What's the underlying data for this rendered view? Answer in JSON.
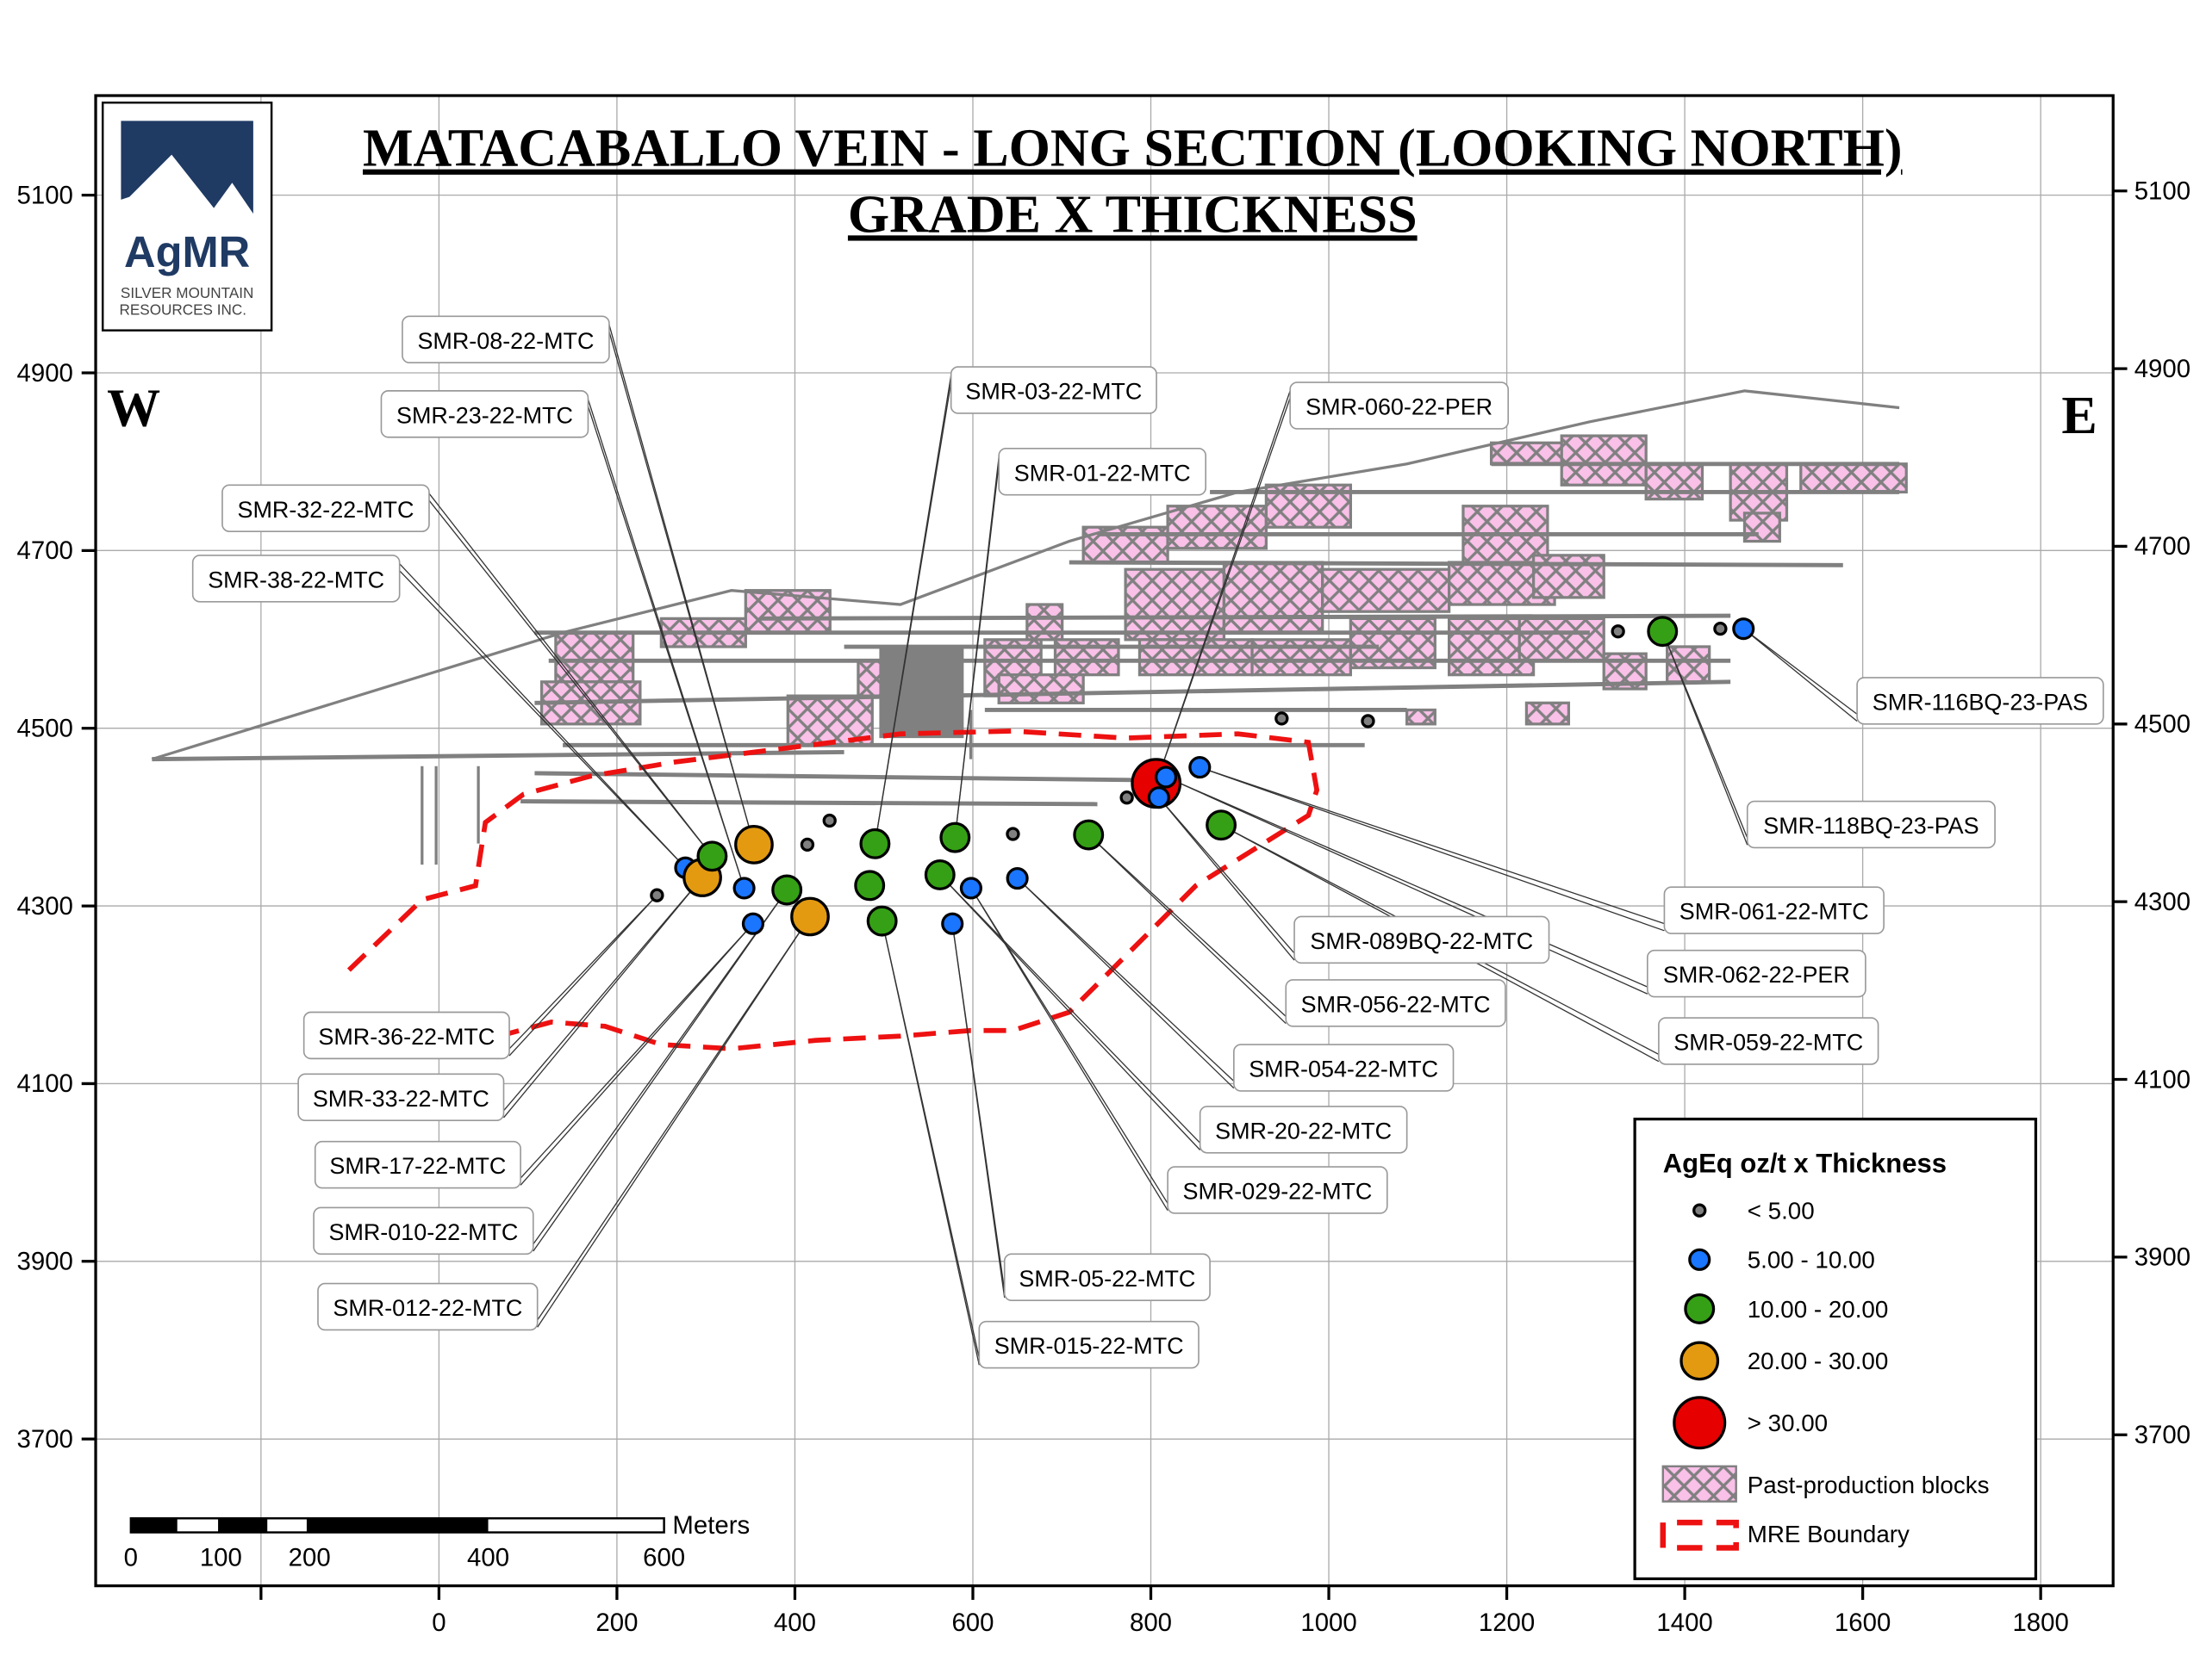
{
  "title": {
    "line1": "MATACABALLO VEIN - LONG SECTION (LOOKING NORTH)",
    "line2": "GRADE X THICKNESS"
  },
  "logo": {
    "brand": "AgMR",
    "line1": "SILVER MOUNTAIN",
    "line2": "RESOURCES INC.",
    "color": "#1f3a63"
  },
  "orientation": {
    "west": "W",
    "east": "E"
  },
  "legend": {
    "title": "AgEq oz/t x Thickness",
    "classes": [
      {
        "label": "< 5.00",
        "color": "#808080"
      },
      {
        "label": "5.00 - 10.00",
        "color": "#1a75ff"
      },
      {
        "label": "10.00 - 20.00",
        "color": "#35a015"
      },
      {
        "label": "20.00 - 30.00",
        "color": "#e39a10"
      },
      {
        "label": "> 30.00",
        "color": "#e60000"
      }
    ],
    "blocks_label": "Past-production blocks",
    "blocks_color": "#f9c0e8",
    "boundary_label": "MRE Boundary",
    "boundary_color": "#ee1111"
  },
  "scalebar": {
    "unit": "Meters",
    "ticks": [
      "0",
      "100",
      "200",
      "400",
      "600"
    ]
  },
  "chart_data": {
    "type": "scatter",
    "x_ticks": [
      "0",
      "200",
      "400",
      "600",
      "800",
      "1000",
      "1200",
      "1400",
      "1600",
      "1800"
    ],
    "y_ticks": [
      "5100",
      "4900",
      "4700",
      "4500",
      "4300",
      "4100",
      "3900",
      "3700"
    ],
    "xlim": [
      -400,
      1900
    ],
    "ylim": [
      3580,
      5210
    ],
    "grid": true,
    "legend_position": "bottom-right",
    "holes": [
      {
        "x": 245,
        "elev": 4312,
        "cls": 0
      },
      {
        "x": 277,
        "elev": 4343,
        "cls": 1
      },
      {
        "x": 296,
        "elev": 4332,
        "cls": 3
      },
      {
        "x": 307,
        "elev": 4356,
        "cls": 2
      },
      {
        "x": 343,
        "elev": 4320,
        "cls": 1
      },
      {
        "x": 354,
        "elev": 4369,
        "cls": 3
      },
      {
        "x": 353,
        "elev": 4280,
        "cls": 1
      },
      {
        "x": 391,
        "elev": 4318,
        "cls": 2
      },
      {
        "x": 414,
        "elev": 4369,
        "cls": 0
      },
      {
        "x": 439,
        "elev": 4396,
        "cls": 0
      },
      {
        "x": 417,
        "elev": 4288,
        "cls": 3
      },
      {
        "x": 490,
        "elev": 4370,
        "cls": 2
      },
      {
        "x": 484,
        "elev": 4323,
        "cls": 2
      },
      {
        "x": 498,
        "elev": 4283,
        "cls": 2
      },
      {
        "x": 563,
        "elev": 4335,
        "cls": 2
      },
      {
        "x": 580,
        "elev": 4377,
        "cls": 2
      },
      {
        "x": 598,
        "elev": 4320,
        "cls": 1
      },
      {
        "x": 577,
        "elev": 4280,
        "cls": 1
      },
      {
        "x": 645,
        "elev": 4381,
        "cls": 0
      },
      {
        "x": 650,
        "elev": 4331,
        "cls": 1
      },
      {
        "x": 730,
        "elev": 4380,
        "cls": 2
      },
      {
        "x": 773,
        "elev": 4422,
        "cls": 0
      },
      {
        "x": 793,
        "elev": 4435,
        "cls": 0
      },
      {
        "x": 806,
        "elev": 4438,
        "cls": 4
      },
      {
        "x": 817,
        "elev": 4445,
        "cls": 1
      },
      {
        "x": 809,
        "elev": 4422,
        "cls": 1
      },
      {
        "x": 855,
        "elev": 4456,
        "cls": 1
      },
      {
        "x": 879,
        "elev": 4391,
        "cls": 2
      },
      {
        "x": 947,
        "elev": 4511,
        "cls": 0
      },
      {
        "x": 1044,
        "elev": 4508,
        "cls": 0
      },
      {
        "x": 1325,
        "elev": 4609,
        "cls": 0
      },
      {
        "x": 1375,
        "elev": 4609,
        "cls": 2
      },
      {
        "x": 1440,
        "elev": 4612,
        "cls": 0
      },
      {
        "x": 1466,
        "elev": 4612,
        "cls": 1
      }
    ],
    "labels": [
      {
        "name": "SMR-08-22-MTC",
        "hole": 5
      },
      {
        "name": "SMR-23-22-MTC",
        "hole": 4
      },
      {
        "name": "SMR-03-22-MTC",
        "hole": 11
      },
      {
        "name": "SMR-01-22-MTC",
        "hole": 15
      },
      {
        "name": "SMR-060-22-PER",
        "hole": 23
      },
      {
        "name": "SMR-32-22-MTC",
        "hole": 3
      },
      {
        "name": "SMR-38-22-MTC",
        "hole": 1
      },
      {
        "name": "SMR-36-22-MTC",
        "hole": 0
      },
      {
        "name": "SMR-33-22-MTC",
        "hole": 2
      },
      {
        "name": "SMR-17-22-MTC",
        "hole": 6
      },
      {
        "name": "SMR-010-22-MTC",
        "hole": 7
      },
      {
        "name": "SMR-012-22-MTC",
        "hole": 10
      },
      {
        "name": "SMR-015-22-MTC",
        "hole": 13
      },
      {
        "name": "SMR-05-22-MTC",
        "hole": 17
      },
      {
        "name": "SMR-029-22-MTC",
        "hole": 16
      },
      {
        "name": "SMR-20-22-MTC",
        "hole": 14
      },
      {
        "name": "SMR-054-22-MTC",
        "hole": 19
      },
      {
        "name": "SMR-056-22-MTC",
        "hole": 20
      },
      {
        "name": "SMR-089BQ-22-MTC",
        "hole": 25
      },
      {
        "name": "SMR-061-22-MTC",
        "hole": 26
      },
      {
        "name": "SMR-062-22-PER",
        "hole": 24
      },
      {
        "name": "SMR-059-22-MTC",
        "hole": 27
      },
      {
        "name": "SMR-116BQ-23-PAS",
        "hole": 33
      },
      {
        "name": "SMR-118BQ-23-PAS",
        "hole": 31
      }
    ]
  }
}
